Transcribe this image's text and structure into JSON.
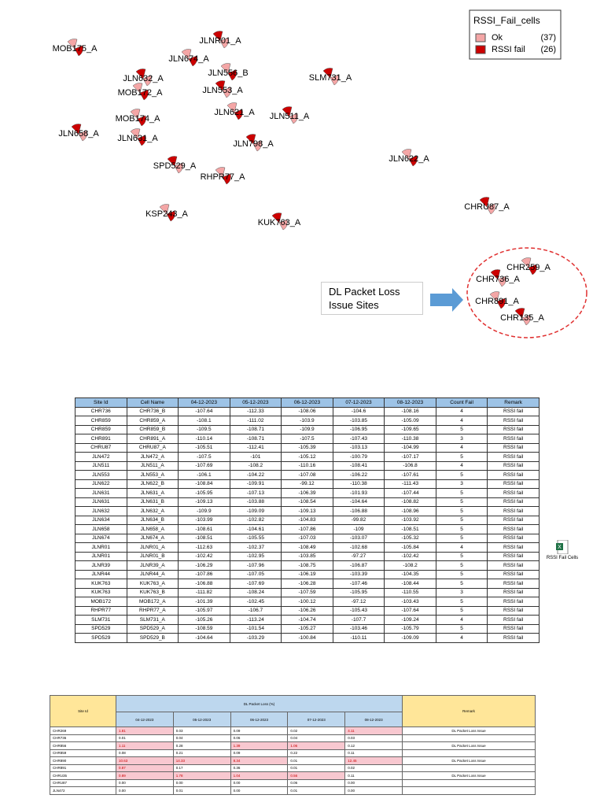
{
  "map": {
    "labels": [
      "MOB175_A",
      "JLNR01_A",
      "JLN674_A",
      "JLN632_A",
      "JLN556_B",
      "SLM731_A",
      "MOB172_A",
      "JLN553_A",
      "JLN621_A",
      "JLN511_A",
      "MOB174_A",
      "JLN658_A",
      "JLN631_A",
      "JLN798_A",
      "JLN622_A",
      "SPD529_A",
      "RHPR77_A",
      "CHRU87_A",
      "KSP243_A",
      "KUK763_A",
      "CHR259_A",
      "CHR736_A",
      "CHR891_A",
      "CHR135_A"
    ],
    "legend": {
      "title": "RSSI_Fail_cells",
      "items": [
        {
          "name": "Ok",
          "count": "(37)",
          "color": "#f4a6a6"
        },
        {
          "name": "RSSI fail",
          "count": "(26)",
          "color": "#cc0000"
        }
      ]
    },
    "callout": "DL Packet Loss Issue Sites"
  },
  "table1": {
    "header": [
      "Site Id",
      "Cell Name",
      "04-12-2023",
      "05-12-2023",
      "06-12-2023",
      "07-12-2023",
      "08-12-2023",
      "Count Fail",
      "Remark"
    ],
    "rows": [
      [
        "CHR736",
        "CHR736_B",
        -107.64,
        -112.33,
        -108.06,
        -104.6,
        -108.16,
        4,
        "RSSI fail"
      ],
      [
        "CHR859",
        "CHR859_A",
        -108.1,
        -111.02,
        -103.9,
        -103.85,
        -105.09,
        4,
        "RSSI fail"
      ],
      [
        "CHR859",
        "CHR859_B",
        -109.5,
        -108.71,
        -109.9,
        -106.95,
        -109.65,
        5,
        "RSSI fail"
      ],
      [
        "CHR891",
        "CHR891_A",
        -110.14,
        -108.71,
        -107.5,
        -107.43,
        -110.38,
        3,
        "RSSI fail"
      ],
      [
        "CHRU87",
        "CHRU87_A",
        -105.51,
        -112.41,
        -105.39,
        -103.13,
        -104.99,
        4,
        "RSSI fail"
      ],
      [
        "JLN472",
        "JLN472_A",
        -107.5,
        -101,
        -105.12,
        -100.79,
        -107.17,
        5,
        "RSSI fail"
      ],
      [
        "JLN511",
        "JLN511_A",
        -107.69,
        -108.2,
        -110.16,
        -108.41,
        -106.8,
        4,
        "RSSI fail"
      ],
      [
        "JLN553",
        "JLN553_A",
        -106.1,
        -104.22,
        -107.08,
        -106.22,
        -107.61,
        5,
        "RSSI fail"
      ],
      [
        "JLN622",
        "JLN622_B",
        -108.84,
        -109.91,
        -99.12,
        -110.38,
        -111.43,
        3,
        "RSSI fail"
      ],
      [
        "JLN631",
        "JLN631_A",
        -105.95,
        -107.13,
        -106.39,
        -101.93,
        -107.44,
        5,
        "RSSI fail"
      ],
      [
        "JLN631",
        "JLN631_B",
        -109.13,
        -103.88,
        -108.54,
        -104.64,
        -108.82,
        5,
        "RSSI fail"
      ],
      [
        "JLN632",
        "JLN632_A",
        -109.9,
        -109.09,
        -109.13,
        -106.88,
        -108.96,
        5,
        "RSSI fail"
      ],
      [
        "JLN634",
        "JLN634_B",
        -103.99,
        -102.82,
        -104.83,
        -99.82,
        -103.92,
        5,
        "RSSI fail"
      ],
      [
        "JLN658",
        "JLN658_A",
        -108.61,
        -104.61,
        -107.86,
        -109,
        -108.51,
        5,
        "RSSI fail"
      ],
      [
        "JLN674",
        "JLN674_A",
        -108.51,
        -105.55,
        -107.03,
        -103.07,
        -105.32,
        5,
        "RSSI fail"
      ],
      [
        "JLNR01",
        "JLNR01_A",
        -112.63,
        -102.37,
        -108.49,
        -102.68,
        -105.84,
        4,
        "RSSI fail"
      ],
      [
        "JLNR01",
        "JLNR01_B",
        -102.42,
        -102.95,
        -103.85,
        -97.27,
        -102.42,
        5,
        "RSSI fail"
      ],
      [
        "JLNR39",
        "JLNR39_A",
        -106.29,
        -107.96,
        -108.75,
        -106.87,
        -108.2,
        5,
        "RSSI fail"
      ],
      [
        "JLNR44",
        "JLNR44_A",
        -107.86,
        -107.05,
        -106.19,
        -103.39,
        -104.35,
        5,
        "RSSI fail"
      ],
      [
        "KUK763",
        "KUK763_A",
        -106.88,
        -107.69,
        -106.28,
        -107.46,
        -108.44,
        5,
        "RSSI fail"
      ],
      [
        "KUK763",
        "KUK763_B",
        -111.82,
        -108.24,
        -107.59,
        -105.95,
        -110.55,
        3,
        "RSSI fail"
      ],
      [
        "MOB172",
        "MOB172_A",
        -101.39,
        -102.45,
        -100.12,
        -97.12,
        -103.43,
        5,
        "RSSI fail"
      ],
      [
        "RHPR77",
        "RHPR77_A",
        -105.97,
        -106.7,
        -106.26,
        -105.43,
        -107.64,
        5,
        "RSSI fail"
      ],
      [
        "SLM731",
        "SLM731_A",
        -105.26,
        -113.24,
        -104.74,
        -107.7,
        -109.24,
        4,
        "RSSI fail"
      ],
      [
        "SPD529",
        "SPD529_A",
        -108.59,
        -101.54,
        -105.27,
        -103.46,
        -105.79,
        5,
        "RSSI fail"
      ],
      [
        "SPD529",
        "SPD529_B",
        -104.64,
        -103.29,
        -100.84,
        -110.11,
        -109.09,
        4,
        "RSSI fail"
      ]
    ]
  },
  "file_icon": {
    "label": "RSSI Fail Cells"
  },
  "table2": {
    "site_header": "Site Id",
    "group_header": "DL Packet Loss (%)",
    "dates": [
      "04-12-2023",
      "05-12-2023",
      "06-12-2023",
      "07-12-2023",
      "08-12-2023"
    ],
    "remark_header": "Remark",
    "highlight_color": "#f8c8d0",
    "rows": [
      {
        "site": "CHR269",
        "values": [
          "1.81",
          "0.03",
          "0.09",
          "0.02",
          "4.11"
        ],
        "highlight": [
          0,
          4
        ],
        "remark": "DL Packet Loss Issue"
      },
      {
        "site": "CHR736",
        "values": [
          "0.01",
          "0.04",
          "0.06",
          "0.04",
          "0.03"
        ]
      },
      {
        "site": "CHR856",
        "values": [
          "1.11",
          "0.28",
          "1.39",
          "1.06",
          "0.12"
        ],
        "highlight": [
          0,
          2,
          3
        ],
        "remark": "DL Packet Loss Issue"
      },
      {
        "site": "CHR859",
        "values": [
          "0.08",
          "0.21",
          "0.09",
          "0.22",
          "0.11"
        ]
      },
      {
        "site": "CHR890",
        "values": [
          "10.63",
          "14.33",
          "8.34",
          "0.01",
          "12.45"
        ],
        "highlight": [
          0,
          1,
          2,
          4
        ],
        "remark": "DL Packet Loss Issue"
      },
      {
        "site": "CHR891",
        "values": [
          "0.87",
          "0.17",
          "0.36",
          "0.01",
          "0.02"
        ],
        "highlight": [
          0
        ]
      },
      {
        "site": "CHRU35",
        "values": [
          "0.89",
          "1.78",
          "1.04",
          "0.56",
          "0.11"
        ],
        "highlight": [
          0,
          1,
          2,
          3
        ],
        "remark": "DL Packet Loss Issue"
      },
      {
        "site": "CHRU87",
        "values": [
          "0.00",
          "0.00",
          "0.00",
          "0.06",
          "0.00"
        ]
      },
      {
        "site": "JLN472",
        "values": [
          "0.00",
          "0.01",
          "0.00",
          "0.01",
          "0.00"
        ]
      }
    ]
  }
}
